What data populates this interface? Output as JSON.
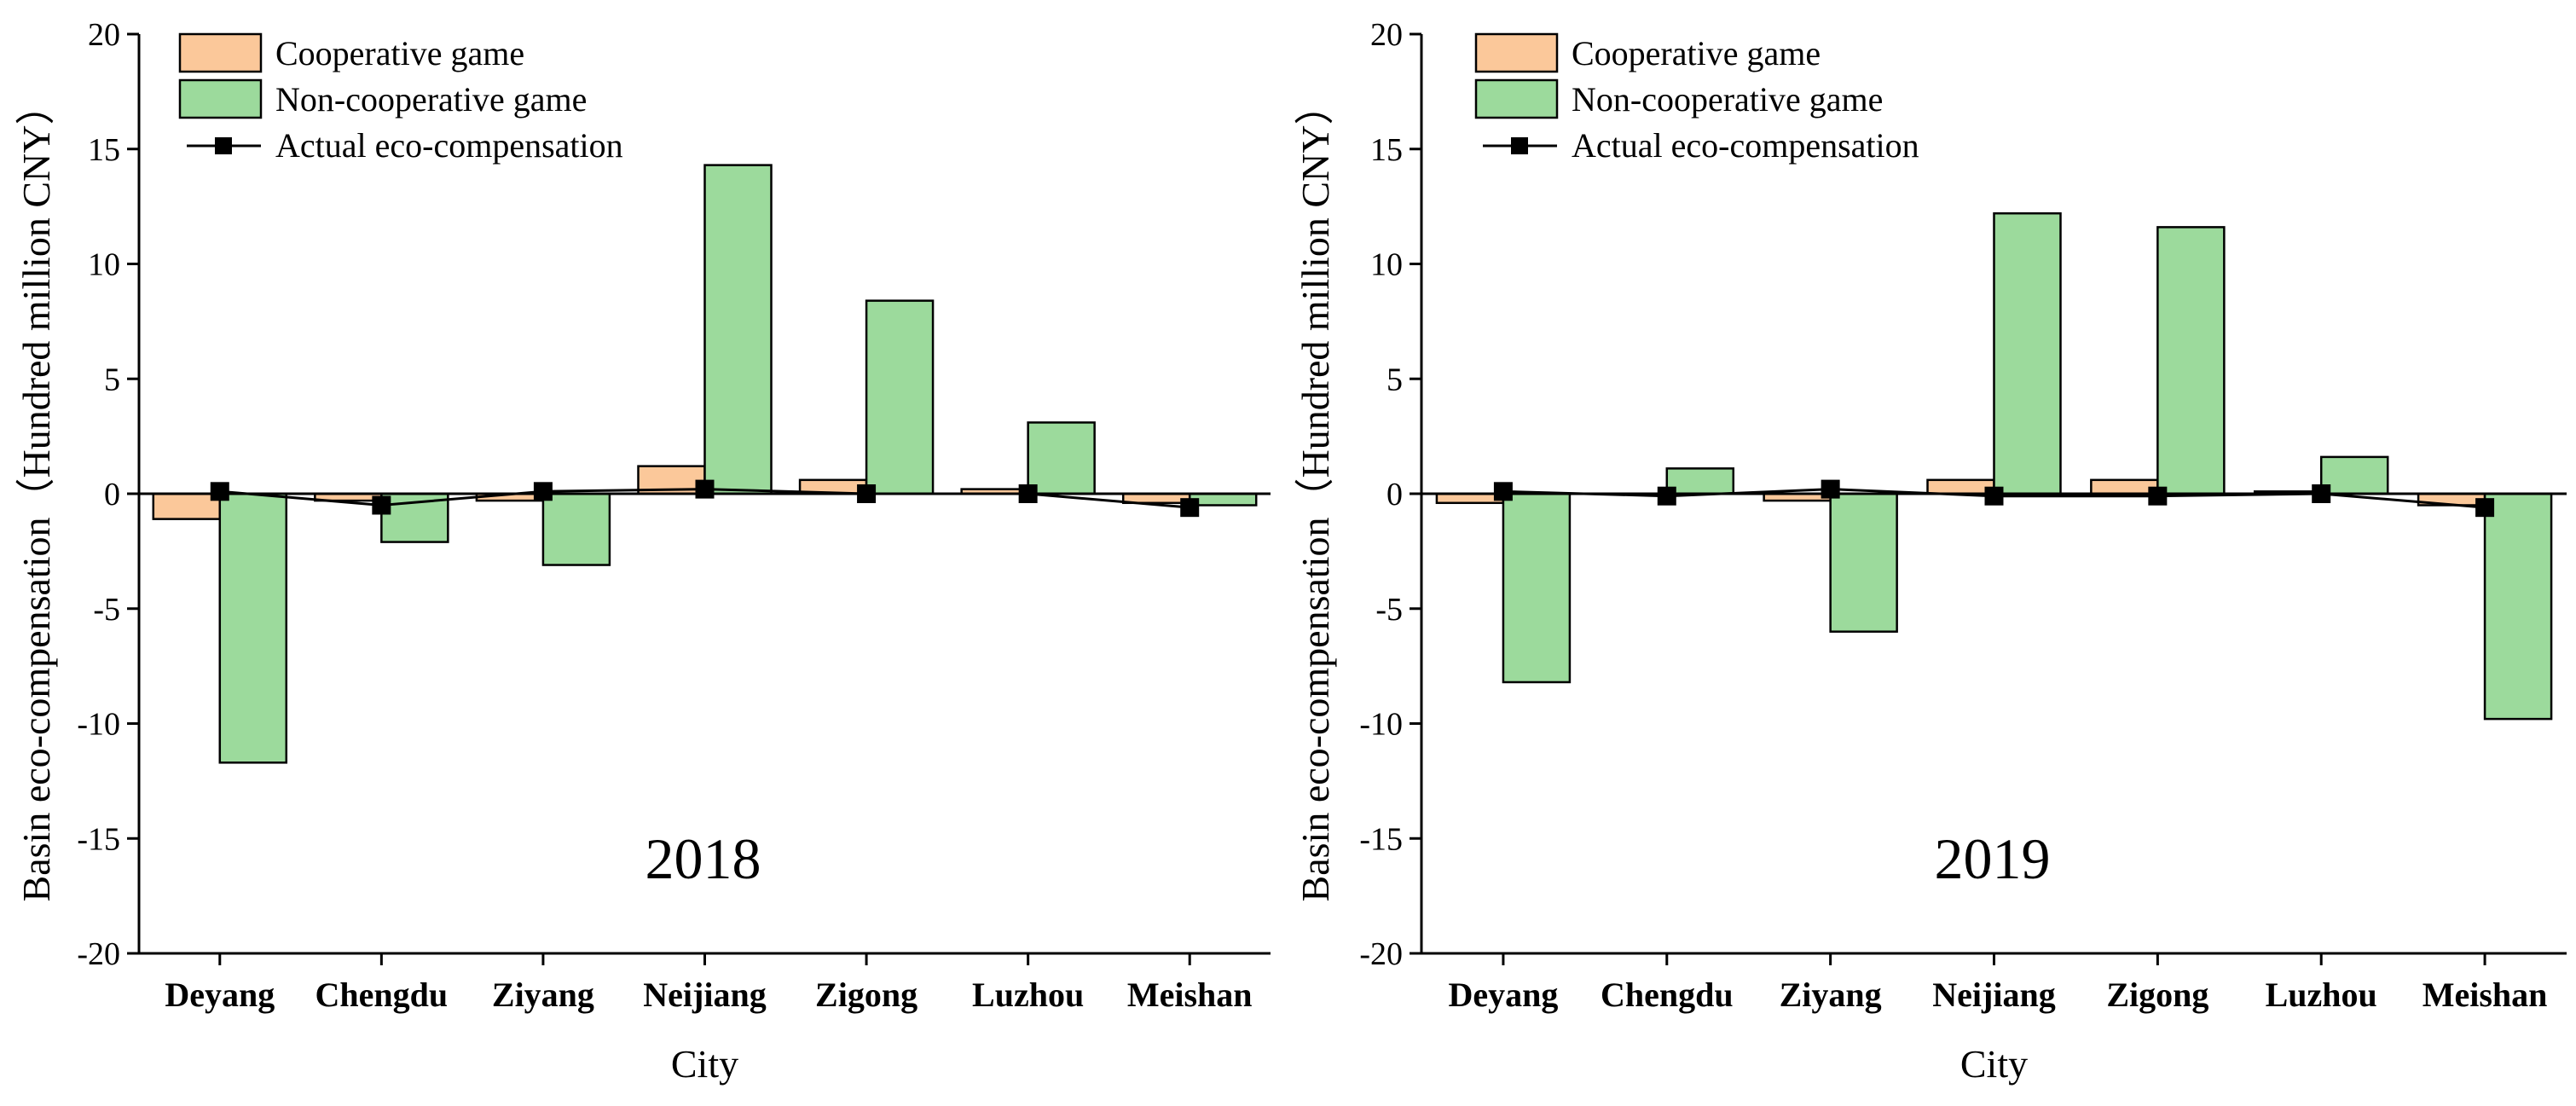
{
  "colors": {
    "cooperative": "#FBC89A",
    "noncooperative": "#9CDA9C",
    "actual": "#000000"
  },
  "chart_data": [
    {
      "type": "bar",
      "title": "2018",
      "xlabel": "City",
      "ylabel": "Basin eco-compensation（Hundred  million  CNY）",
      "ylim": [
        -20,
        20
      ],
      "yticks": [
        20,
        15,
        10,
        5,
        0,
        -5,
        -10,
        -15,
        -20
      ],
      "categories": [
        "Deyang",
        "Chengdu",
        "Ziyang",
        "Neijiang",
        "Zigong",
        "Luzhou",
        "Meishan"
      ],
      "series": [
        {
          "name": "Cooperative game",
          "kind": "bar",
          "values": [
            -1.1,
            -0.3,
            -0.3,
            1.2,
            0.6,
            0.2,
            -0.4
          ]
        },
        {
          "name": "Non-cooperative game",
          "kind": "bar",
          "values": [
            -11.7,
            -2.1,
            -3.1,
            14.3,
            8.4,
            3.1,
            -0.5
          ]
        },
        {
          "name": "Actual eco-compensation",
          "kind": "line",
          "values": [
            0.1,
            -0.5,
            0.1,
            0.2,
            0.0,
            0.0,
            -0.6
          ]
        }
      ],
      "legend": "top-left"
    },
    {
      "type": "bar",
      "title": "2019",
      "xlabel": "City",
      "ylabel": "Basin eco-compensation（Hundred  million  CNY）",
      "ylim": [
        -20,
        20
      ],
      "yticks": [
        20,
        15,
        10,
        5,
        0,
        -5,
        -10,
        -15,
        -20
      ],
      "categories": [
        "Deyang",
        "Chengdu",
        "Ziyang",
        "Neijiang",
        "Zigong",
        "Luzhou",
        "Meishan"
      ],
      "series": [
        {
          "name": "Cooperative game",
          "kind": "bar",
          "values": [
            -0.4,
            0.0,
            -0.3,
            0.6,
            0.6,
            0.1,
            -0.5
          ]
        },
        {
          "name": "Non-cooperative game",
          "kind": "bar",
          "values": [
            -8.2,
            1.1,
            -6.0,
            12.2,
            11.6,
            1.6,
            -9.8
          ]
        },
        {
          "name": "Actual eco-compensation",
          "kind": "line",
          "values": [
            0.1,
            -0.1,
            0.2,
            -0.1,
            -0.1,
            0.0,
            -0.6
          ]
        }
      ],
      "legend": "top-left"
    }
  ]
}
